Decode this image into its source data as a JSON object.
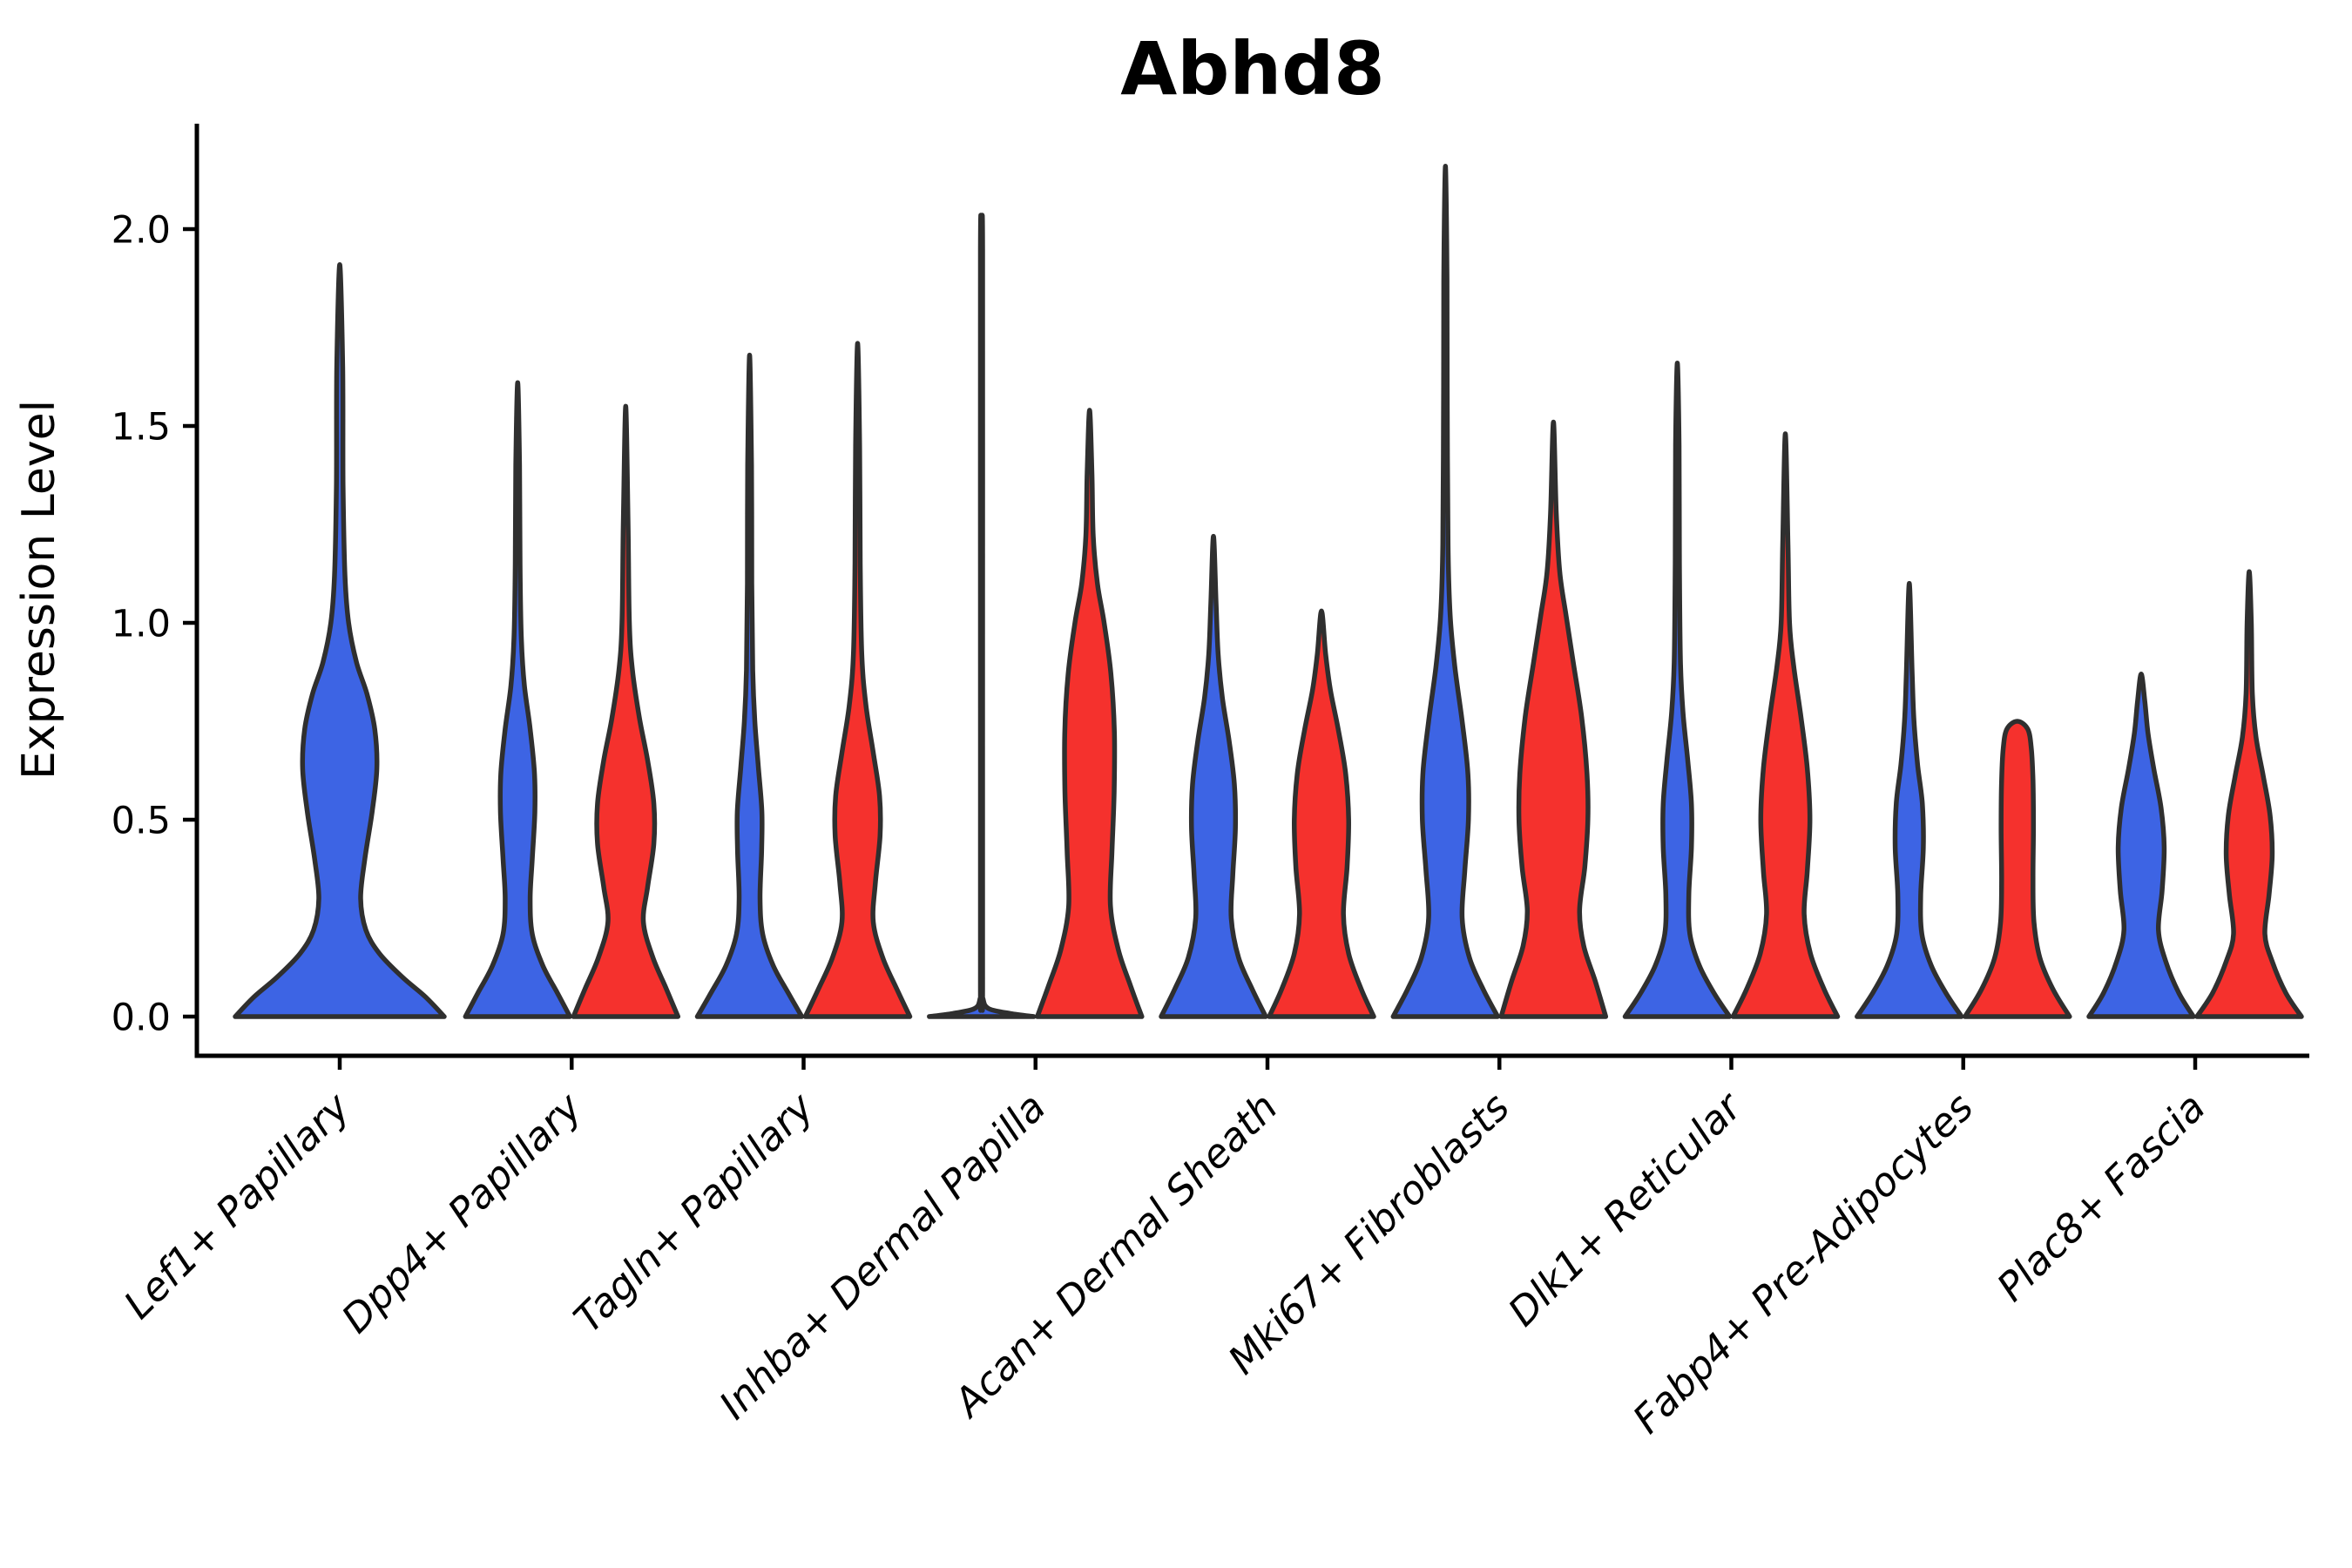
{
  "chart_data": {
    "type": "violin",
    "title": "Abhd8",
    "ylabel": "Expression Level",
    "ylim": [
      0,
      2.28
    ],
    "yticks": [
      {
        "value": 0.0,
        "label": "0.0"
      },
      {
        "value": 0.5,
        "label": "0.5"
      },
      {
        "value": 1.0,
        "label": "1.0"
      },
      {
        "value": 1.5,
        "label": "1.5"
      },
      {
        "value": 2.0,
        "label": "2.0"
      }
    ],
    "categories": [
      "Lef1+ Papillary",
      "Dpp4+ Papillary",
      "Tagln+ Papillary",
      "Inhba+ Dermal Papilla",
      "Acan+ Dermal Sheath",
      "Mki67+ Fibroblasts",
      "Dlk1+ Reticular",
      "Fabp4+ Pre-Adipocytes",
      "Plac8+ Fascia"
    ],
    "colors": {
      "blue": "#3D64E4",
      "red": "#F5312D",
      "outline": "#2F2F2F",
      "axis": "#000000"
    },
    "legend": "none",
    "grid": false,
    "violins": [
      {
        "category_index": 0,
        "category": "Lef1+ Papillary",
        "split": "blue",
        "single": true,
        "max_expression": 1.91,
        "profile": [
          [
            0,
            1.0
          ],
          [
            0.05,
            0.82
          ],
          [
            0.1,
            0.6
          ],
          [
            0.16,
            0.38
          ],
          [
            0.22,
            0.25
          ],
          [
            0.3,
            0.2
          ],
          [
            0.4,
            0.24
          ],
          [
            0.52,
            0.31
          ],
          [
            0.63,
            0.355
          ],
          [
            0.73,
            0.335
          ],
          [
            0.82,
            0.26
          ],
          [
            0.9,
            0.16
          ],
          [
            1.0,
            0.085
          ],
          [
            1.12,
            0.05
          ],
          [
            1.35,
            0.032
          ],
          [
            1.65,
            0.028
          ],
          [
            1.91,
            0.0
          ]
        ]
      },
      {
        "category_index": 1,
        "category": "Dpp4+ Papillary",
        "split": "blue",
        "single": false,
        "max_expression": 1.61,
        "profile": [
          [
            0,
            1.0
          ],
          [
            0.06,
            0.76
          ],
          [
            0.13,
            0.48
          ],
          [
            0.21,
            0.28
          ],
          [
            0.3,
            0.24
          ],
          [
            0.4,
            0.28
          ],
          [
            0.52,
            0.33
          ],
          [
            0.62,
            0.32
          ],
          [
            0.73,
            0.24
          ],
          [
            0.84,
            0.13
          ],
          [
            0.96,
            0.07
          ],
          [
            1.15,
            0.045
          ],
          [
            1.4,
            0.035
          ],
          [
            1.61,
            0.0
          ]
        ]
      },
      {
        "category_index": 1,
        "category": "Dpp4+ Papillary",
        "split": "red",
        "single": false,
        "max_expression": 1.55,
        "profile": [
          [
            0,
            1.0
          ],
          [
            0.07,
            0.78
          ],
          [
            0.15,
            0.52
          ],
          [
            0.24,
            0.34
          ],
          [
            0.33,
            0.42
          ],
          [
            0.44,
            0.54
          ],
          [
            0.54,
            0.54
          ],
          [
            0.65,
            0.42
          ],
          [
            0.76,
            0.26
          ],
          [
            0.88,
            0.13
          ],
          [
            1.0,
            0.07
          ],
          [
            1.25,
            0.045
          ],
          [
            1.55,
            0.0
          ]
        ]
      },
      {
        "category_index": 2,
        "category": "Tagln+ Papillary",
        "split": "blue",
        "single": false,
        "max_expression": 1.68,
        "profile": [
          [
            0,
            1.0
          ],
          [
            0.06,
            0.74
          ],
          [
            0.13,
            0.45
          ],
          [
            0.21,
            0.25
          ],
          [
            0.3,
            0.2
          ],
          [
            0.42,
            0.23
          ],
          [
            0.52,
            0.235
          ],
          [
            0.63,
            0.17
          ],
          [
            0.75,
            0.1
          ],
          [
            0.88,
            0.06
          ],
          [
            1.1,
            0.042
          ],
          [
            1.4,
            0.036
          ],
          [
            1.68,
            0.0
          ]
        ]
      },
      {
        "category_index": 2,
        "category": "Tagln+ Papillary",
        "split": "red",
        "single": false,
        "max_expression": 1.71,
        "profile": [
          [
            0,
            1.0
          ],
          [
            0.07,
            0.75
          ],
          [
            0.15,
            0.48
          ],
          [
            0.24,
            0.3
          ],
          [
            0.34,
            0.34
          ],
          [
            0.46,
            0.43
          ],
          [
            0.56,
            0.42
          ],
          [
            0.67,
            0.3
          ],
          [
            0.79,
            0.16
          ],
          [
            0.92,
            0.08
          ],
          [
            1.15,
            0.05
          ],
          [
            1.45,
            0.038
          ],
          [
            1.71,
            0.0
          ]
        ]
      },
      {
        "category_index": 3,
        "category": "Inhba+ Dermal Papilla",
        "split": "blue",
        "single": false,
        "max_expression": 1.99,
        "profile": [
          [
            0,
            1.0
          ],
          [
            0.008,
            0.55
          ],
          [
            0.02,
            0.14
          ],
          [
            0.045,
            0.03
          ],
          [
            0.1,
            0.02
          ],
          [
            1.0,
            0.02
          ],
          [
            1.95,
            0.02
          ],
          [
            1.99,
            0.0
          ]
        ]
      },
      {
        "category_index": 3,
        "category": "Inhba+ Dermal Papilla",
        "split": "red",
        "single": false,
        "max_expression": 1.54,
        "profile": [
          [
            0,
            1.0
          ],
          [
            0.08,
            0.78
          ],
          [
            0.17,
            0.55
          ],
          [
            0.28,
            0.4
          ],
          [
            0.42,
            0.43
          ],
          [
            0.57,
            0.47
          ],
          [
            0.72,
            0.475
          ],
          [
            0.87,
            0.41
          ],
          [
            1.0,
            0.28
          ],
          [
            1.1,
            0.15
          ],
          [
            1.22,
            0.07
          ],
          [
            1.38,
            0.045
          ],
          [
            1.54,
            0.0
          ]
        ]
      },
      {
        "category_index": 4,
        "category": "Acan+ Dermal Sheath",
        "split": "blue",
        "single": false,
        "max_expression": 1.22,
        "profile": [
          [
            0,
            1.0
          ],
          [
            0.07,
            0.74
          ],
          [
            0.15,
            0.48
          ],
          [
            0.25,
            0.34
          ],
          [
            0.36,
            0.37
          ],
          [
            0.48,
            0.42
          ],
          [
            0.59,
            0.4
          ],
          [
            0.7,
            0.3
          ],
          [
            0.81,
            0.17
          ],
          [
            0.92,
            0.09
          ],
          [
            1.05,
            0.05
          ],
          [
            1.22,
            0.0
          ]
        ]
      },
      {
        "category_index": 4,
        "category": "Acan+ Dermal Sheath",
        "split": "red",
        "single": false,
        "max_expression": 1.03,
        "profile": [
          [
            0,
            1.0
          ],
          [
            0.07,
            0.76
          ],
          [
            0.16,
            0.52
          ],
          [
            0.26,
            0.42
          ],
          [
            0.38,
            0.49
          ],
          [
            0.5,
            0.52
          ],
          [
            0.62,
            0.46
          ],
          [
            0.73,
            0.32
          ],
          [
            0.83,
            0.17
          ],
          [
            0.92,
            0.08
          ],
          [
            1.03,
            0.0
          ]
        ]
      },
      {
        "category_index": 5,
        "category": "Mki67+ Fibroblasts",
        "split": "blue",
        "single": false,
        "max_expression": 2.16,
        "profile": [
          [
            0,
            1.0
          ],
          [
            0.07,
            0.72
          ],
          [
            0.15,
            0.46
          ],
          [
            0.25,
            0.32
          ],
          [
            0.37,
            0.37
          ],
          [
            0.5,
            0.44
          ],
          [
            0.62,
            0.43
          ],
          [
            0.75,
            0.32
          ],
          [
            0.89,
            0.18
          ],
          [
            1.02,
            0.09
          ],
          [
            1.2,
            0.05
          ],
          [
            1.6,
            0.035
          ],
          [
            1.9,
            0.03
          ],
          [
            2.16,
            0.0
          ]
        ]
      },
      {
        "category_index": 5,
        "category": "Mki67+ Fibroblasts",
        "split": "red",
        "single": false,
        "max_expression": 1.51,
        "profile": [
          [
            0,
            1.0
          ],
          [
            0.09,
            0.8
          ],
          [
            0.18,
            0.58
          ],
          [
            0.27,
            0.5
          ],
          [
            0.38,
            0.6
          ],
          [
            0.5,
            0.66
          ],
          [
            0.62,
            0.64
          ],
          [
            0.76,
            0.54
          ],
          [
            0.9,
            0.38
          ],
          [
            1.02,
            0.24
          ],
          [
            1.13,
            0.12
          ],
          [
            1.28,
            0.055
          ],
          [
            1.51,
            0.0
          ]
        ]
      },
      {
        "category_index": 6,
        "category": "Dlk1+ Reticular",
        "split": "blue",
        "single": false,
        "max_expression": 1.66,
        "profile": [
          [
            0,
            1.0
          ],
          [
            0.06,
            0.7
          ],
          [
            0.13,
            0.42
          ],
          [
            0.21,
            0.24
          ],
          [
            0.31,
            0.22
          ],
          [
            0.43,
            0.27
          ],
          [
            0.54,
            0.27
          ],
          [
            0.65,
            0.2
          ],
          [
            0.77,
            0.11
          ],
          [
            0.9,
            0.06
          ],
          [
            1.15,
            0.04
          ],
          [
            1.45,
            0.034
          ],
          [
            1.66,
            0.0
          ]
        ]
      },
      {
        "category_index": 6,
        "category": "Dlk1+ Reticular",
        "split": "red",
        "single": false,
        "max_expression": 1.48,
        "profile": [
          [
            0,
            1.0
          ],
          [
            0.07,
            0.74
          ],
          [
            0.16,
            0.48
          ],
          [
            0.26,
            0.36
          ],
          [
            0.37,
            0.42
          ],
          [
            0.5,
            0.47
          ],
          [
            0.63,
            0.42
          ],
          [
            0.76,
            0.3
          ],
          [
            0.89,
            0.16
          ],
          [
            1.0,
            0.08
          ],
          [
            1.2,
            0.05
          ],
          [
            1.48,
            0.0
          ]
        ]
      },
      {
        "category_index": 7,
        "category": "Fabp4+ Pre-Adipocytes",
        "split": "blue",
        "single": false,
        "max_expression": 1.1,
        "profile": [
          [
            0,
            1.0
          ],
          [
            0.06,
            0.7
          ],
          [
            0.13,
            0.42
          ],
          [
            0.21,
            0.24
          ],
          [
            0.31,
            0.22
          ],
          [
            0.43,
            0.27
          ],
          [
            0.54,
            0.25
          ],
          [
            0.64,
            0.16
          ],
          [
            0.75,
            0.09
          ],
          [
            0.87,
            0.055
          ],
          [
            1.1,
            0.0
          ]
        ]
      },
      {
        "category_index": 7,
        "category": "Fabp4+ Pre-Adipocytes",
        "split": "red",
        "single": false,
        "max_expression": 0.75,
        "profile": [
          [
            0,
            1.0
          ],
          [
            0.07,
            0.68
          ],
          [
            0.15,
            0.43
          ],
          [
            0.24,
            0.32
          ],
          [
            0.35,
            0.3
          ],
          [
            0.48,
            0.31
          ],
          [
            0.6,
            0.3
          ],
          [
            0.68,
            0.27
          ],
          [
            0.73,
            0.2
          ],
          [
            0.75,
            0.0
          ]
        ]
      },
      {
        "category_index": 8,
        "category": "Plac8+ Fascia",
        "split": "blue",
        "single": false,
        "max_expression": 0.87,
        "profile": [
          [
            0,
            1.0
          ],
          [
            0.06,
            0.72
          ],
          [
            0.14,
            0.47
          ],
          [
            0.22,
            0.33
          ],
          [
            0.32,
            0.4
          ],
          [
            0.43,
            0.44
          ],
          [
            0.53,
            0.38
          ],
          [
            0.63,
            0.24
          ],
          [
            0.72,
            0.13
          ],
          [
            0.8,
            0.07
          ],
          [
            0.87,
            0.0
          ]
        ]
      },
      {
        "category_index": 8,
        "category": "Plac8+ Fascia",
        "split": "red",
        "single": false,
        "max_expression": 1.13,
        "profile": [
          [
            0,
            1.0
          ],
          [
            0.06,
            0.7
          ],
          [
            0.14,
            0.44
          ],
          [
            0.21,
            0.3
          ],
          [
            0.31,
            0.38
          ],
          [
            0.41,
            0.44
          ],
          [
            0.51,
            0.4
          ],
          [
            0.61,
            0.27
          ],
          [
            0.71,
            0.13
          ],
          [
            0.82,
            0.06
          ],
          [
            1.0,
            0.04
          ],
          [
            1.13,
            0.0
          ]
        ]
      }
    ]
  }
}
